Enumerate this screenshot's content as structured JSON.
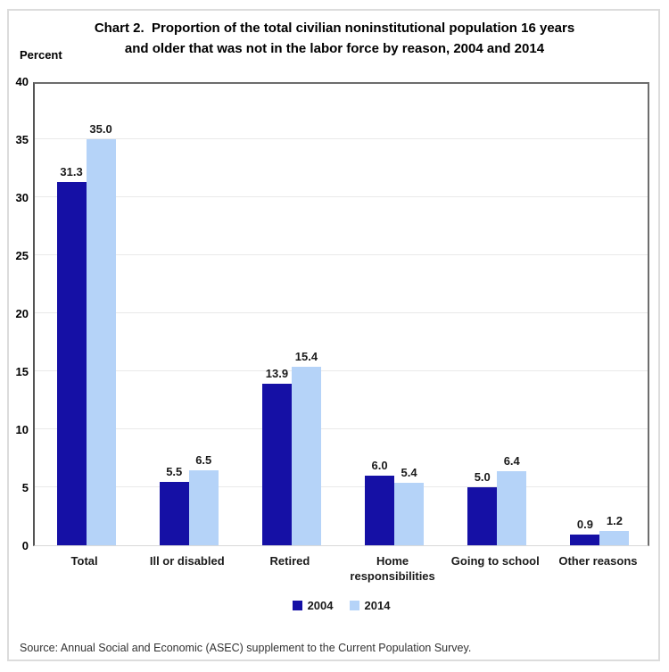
{
  "title": {
    "line1": "Chart 2.  Proportion of the total civilian noninstitutional population 16 years",
    "line2": "and older that was not in the labor force by reason, 2004 and 2014"
  },
  "axis": {
    "unit_label": "Percent"
  },
  "source": "Source: Annual Social and Economic (ASEC) supplement to the Current Population Survey.",
  "colors": {
    "series_2004": "#1510a5",
    "series_2014": "#b5d3f8",
    "plot_border": "#6d6d6d",
    "gridline": "#e9e9e9",
    "baseline": "#d9d9d9",
    "frame_border": "#dcdcdc",
    "text": "#1a1a1a"
  },
  "chart_data": {
    "type": "bar",
    "title": "Chart 2. Proportion of the total civilian noninstitutional population 16 years and older that was not in the labor force by reason, 2004 and 2014",
    "categories": [
      "Total",
      "Ill or disabled",
      "Retired",
      "Home responsibilities",
      "Going to school",
      "Other reasons"
    ],
    "series": [
      {
        "name": "2004",
        "color": "#1510a5",
        "values": [
          31.3,
          5.5,
          13.9,
          6.0,
          5.0,
          0.9
        ]
      },
      {
        "name": "2014",
        "color": "#b5d3f8",
        "values": [
          35.0,
          6.5,
          15.4,
          5.4,
          6.4,
          1.2
        ]
      }
    ],
    "value_label_format": "1-decimal",
    "xlabel": "",
    "ylabel": "Percent",
    "ylim": [
      0,
      40
    ],
    "ytick_interval": 5,
    "grid": true,
    "legend_position": "bottom",
    "value_labels": true
  }
}
